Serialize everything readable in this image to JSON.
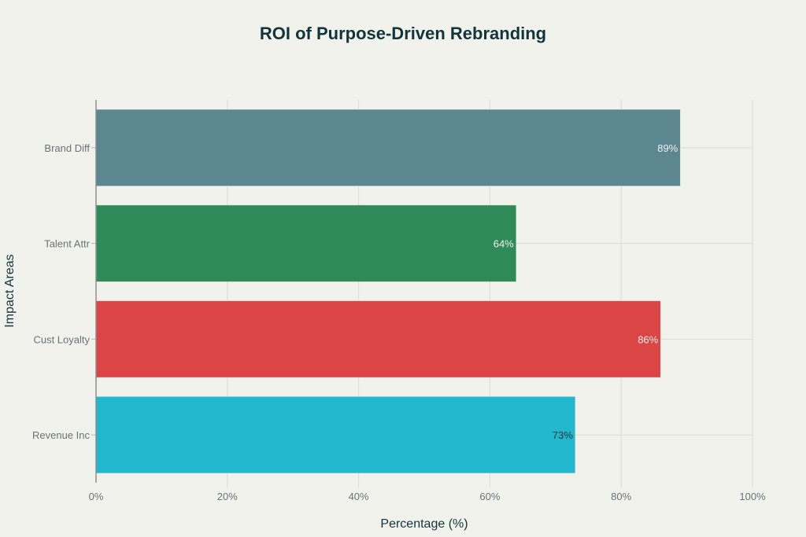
{
  "chart_data": {
    "type": "bar",
    "orientation": "horizontal",
    "title": "ROI of Purpose-Driven Rebranding",
    "xlabel": "Percentage (%)",
    "ylabel": "Impact Areas",
    "categories": [
      "Brand Diff",
      "Talent Attr",
      "Cust Loyalty",
      "Revenue Inc"
    ],
    "values": [
      89,
      64,
      86,
      73
    ],
    "value_labels": [
      "89%",
      "64%",
      "86%",
      "73%"
    ],
    "colors": [
      "#5d8790",
      "#2e8b57",
      "#db4545",
      "#21b8cd"
    ],
    "label_colors": [
      "#f2f2ed",
      "#f2f2ed",
      "#f2f2ed",
      "#13343b"
    ],
    "xlim": [
      0,
      100
    ],
    "xticks": [
      0,
      20,
      40,
      60,
      80,
      100
    ],
    "xtick_labels": [
      "0%",
      "20%",
      "40%",
      "60%",
      "80%",
      "100%"
    ],
    "grid": true,
    "legend": "none"
  }
}
